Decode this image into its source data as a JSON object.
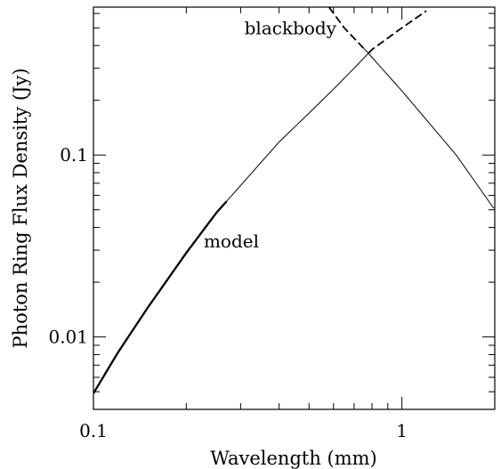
{
  "chart_data": {
    "type": "line",
    "xlabel": "Wavelength (mm)",
    "ylabel": "Photon Ring Flux Density (Jy)",
    "xscale": "log",
    "yscale": "log",
    "xlim": [
      0.1,
      2.0
    ],
    "ylim": [
      0.004,
      0.65
    ],
    "x_tick_labels": [
      {
        "value": 0.1,
        "label": "0.1"
      },
      {
        "value": 1,
        "label": "1"
      }
    ],
    "y_tick_labels": [
      {
        "value": 0.01,
        "label": "0.01"
      },
      {
        "value": 0.1,
        "label": "0.1"
      }
    ],
    "annotations": [
      {
        "text": "blackbody",
        "x": 0.435,
        "y": 0.46
      },
      {
        "text": "model",
        "x": 0.28,
        "y": 0.031
      }
    ],
    "series": [
      {
        "name": "model",
        "x": [
          0.1,
          0.12,
          0.15,
          0.2,
          0.25,
          0.3,
          0.4,
          0.5,
          0.6,
          0.7,
          0.8,
          1.0,
          1.2
        ],
        "y": [
          0.0049,
          0.0082,
          0.0145,
          0.029,
          0.048,
          0.068,
          0.118,
          0.17,
          0.23,
          0.3,
          0.38,
          0.5,
          0.62
        ],
        "style": "solid",
        "thick_x_range": [
          0.1,
          0.27
        ],
        "dashed_x_range": [
          0.78,
          1.2
        ]
      },
      {
        "name": "blackbody",
        "x": [
          0.58,
          0.65,
          0.77,
          1.0,
          1.5,
          2.0
        ],
        "y": [
          0.65,
          0.5,
          0.37,
          0.225,
          0.1,
          0.05
        ],
        "style": "solid",
        "dashed_x_range": [
          0.58,
          0.75
        ]
      }
    ],
    "grid": false,
    "legend": "none"
  }
}
